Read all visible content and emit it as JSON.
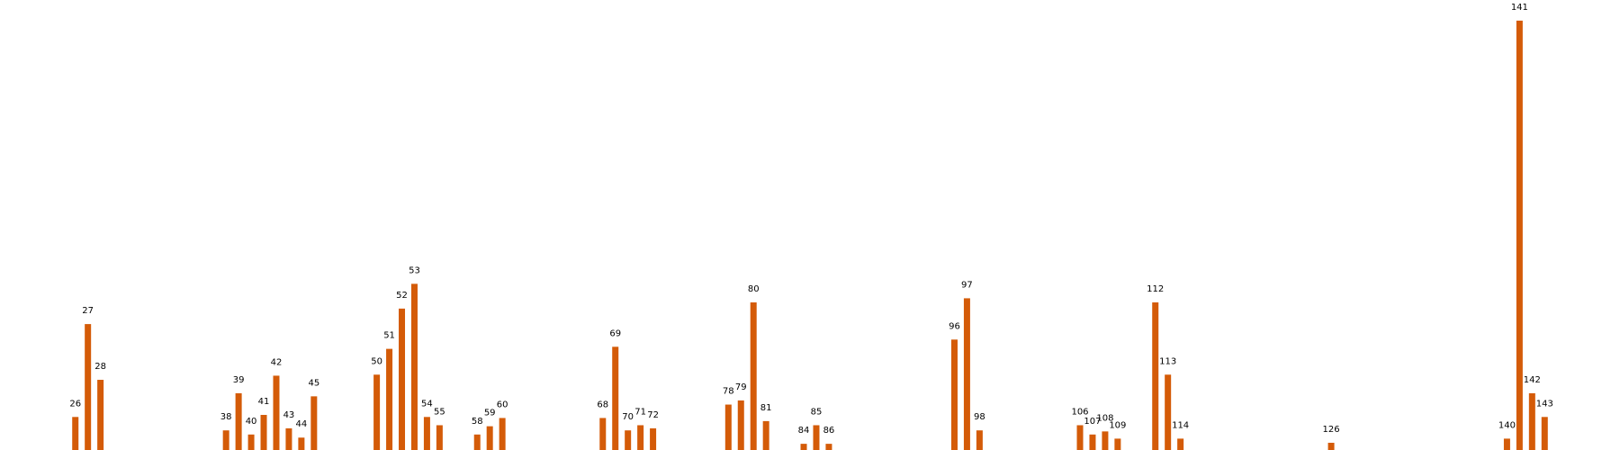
{
  "chart_data": {
    "type": "bar",
    "color": "#d45b08",
    "x": [
      26,
      27,
      28,
      38,
      39,
      40,
      41,
      42,
      43,
      44,
      45,
      50,
      51,
      52,
      53,
      54,
      55,
      58,
      59,
      60,
      68,
      69,
      70,
      71,
      72,
      78,
      79,
      80,
      81,
      84,
      85,
      86,
      96,
      97,
      98,
      106,
      107,
      108,
      109,
      112,
      113,
      114,
      126,
      140,
      141,
      142,
      143
    ],
    "values": [
      32,
      122,
      68,
      19,
      55,
      15,
      34,
      72,
      21,
      12,
      52,
      73,
      98,
      137,
      161,
      32,
      24,
      15,
      23,
      31,
      31,
      100,
      19,
      24,
      21,
      44,
      48,
      143,
      28,
      6,
      24,
      6,
      107,
      147,
      19,
      24,
      15,
      18,
      11,
      143,
      73,
      11,
      7,
      11,
      416,
      55,
      32
    ],
    "xlim": [
      20,
      149
    ],
    "ylim": [
      0,
      436
    ]
  }
}
